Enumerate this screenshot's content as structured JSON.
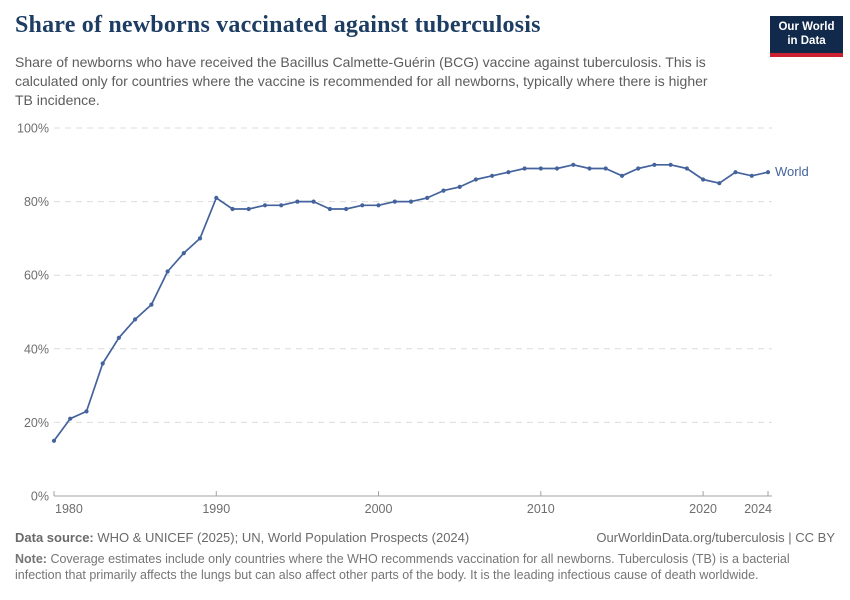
{
  "header": {
    "title": "Share of newborns vaccinated against tuberculosis",
    "subtitle": "Share of newborns who have received the Bacillus Calmette-Guérin (BCG) vaccine against tuberculosis. This is calculated only for countries where the vaccine is recommended for all newborns, typically where there is higher TB incidence.",
    "logo_line1": "Our World",
    "logo_line2": "in Data"
  },
  "colors": {
    "accent_blue": "#44639c",
    "title_navy": "#1d3d63",
    "logo_navy": "#11294a",
    "logo_red": "#cc2130",
    "gridline": "#dcdcdc",
    "axis": "#a3a3a3",
    "tick_text": "#6e6e6e"
  },
  "chart_data": {
    "type": "line",
    "title": "Share of newborns vaccinated against tuberculosis",
    "xlabel": "",
    "ylabel": "",
    "xlim": [
      1980,
      2024
    ],
    "ylim": [
      0,
      100
    ],
    "x_ticks": [
      1980,
      1990,
      2000,
      2010,
      2020,
      2024
    ],
    "y_ticks": [
      0,
      20,
      40,
      60,
      80,
      100
    ],
    "y_tick_suffix": "%",
    "grid": "horizontal-dashed",
    "legend_position": "end-of-line",
    "x": [
      1980,
      1981,
      1982,
      1983,
      1984,
      1985,
      1986,
      1987,
      1988,
      1989,
      1990,
      1991,
      1992,
      1993,
      1994,
      1995,
      1996,
      1997,
      1998,
      1999,
      2000,
      2001,
      2002,
      2003,
      2004,
      2005,
      2006,
      2007,
      2008,
      2009,
      2010,
      2011,
      2012,
      2013,
      2014,
      2015,
      2016,
      2017,
      2018,
      2019,
      2020,
      2021,
      2022,
      2023,
      2024
    ],
    "series": [
      {
        "name": "World",
        "color": "#44639c",
        "values": [
          15,
          21,
          23,
          36,
          43,
          48,
          52,
          61,
          66,
          70,
          81,
          78,
          78,
          79,
          79,
          80,
          80,
          78,
          78,
          79,
          79,
          80,
          80,
          81,
          83,
          84,
          86,
          87,
          88,
          89,
          89,
          89,
          90,
          89,
          89,
          87,
          89,
          90,
          90,
          89,
          86,
          85,
          88,
          87,
          88
        ]
      }
    ]
  },
  "footer": {
    "data_source_label": "Data source:",
    "data_source": "WHO & UNICEF (2025); UN, World Population Prospects (2024)",
    "link": "OurWorldinData.org/tuberculosis | CC BY",
    "note_label": "Note:",
    "note": "Coverage estimates include only countries where the WHO recommends vaccination for all newborns. Tuberculosis (TB) is a bacterial infection that primarily affects the lungs but can also affect other parts of the body. It is the leading infectious cause of death worldwide."
  }
}
